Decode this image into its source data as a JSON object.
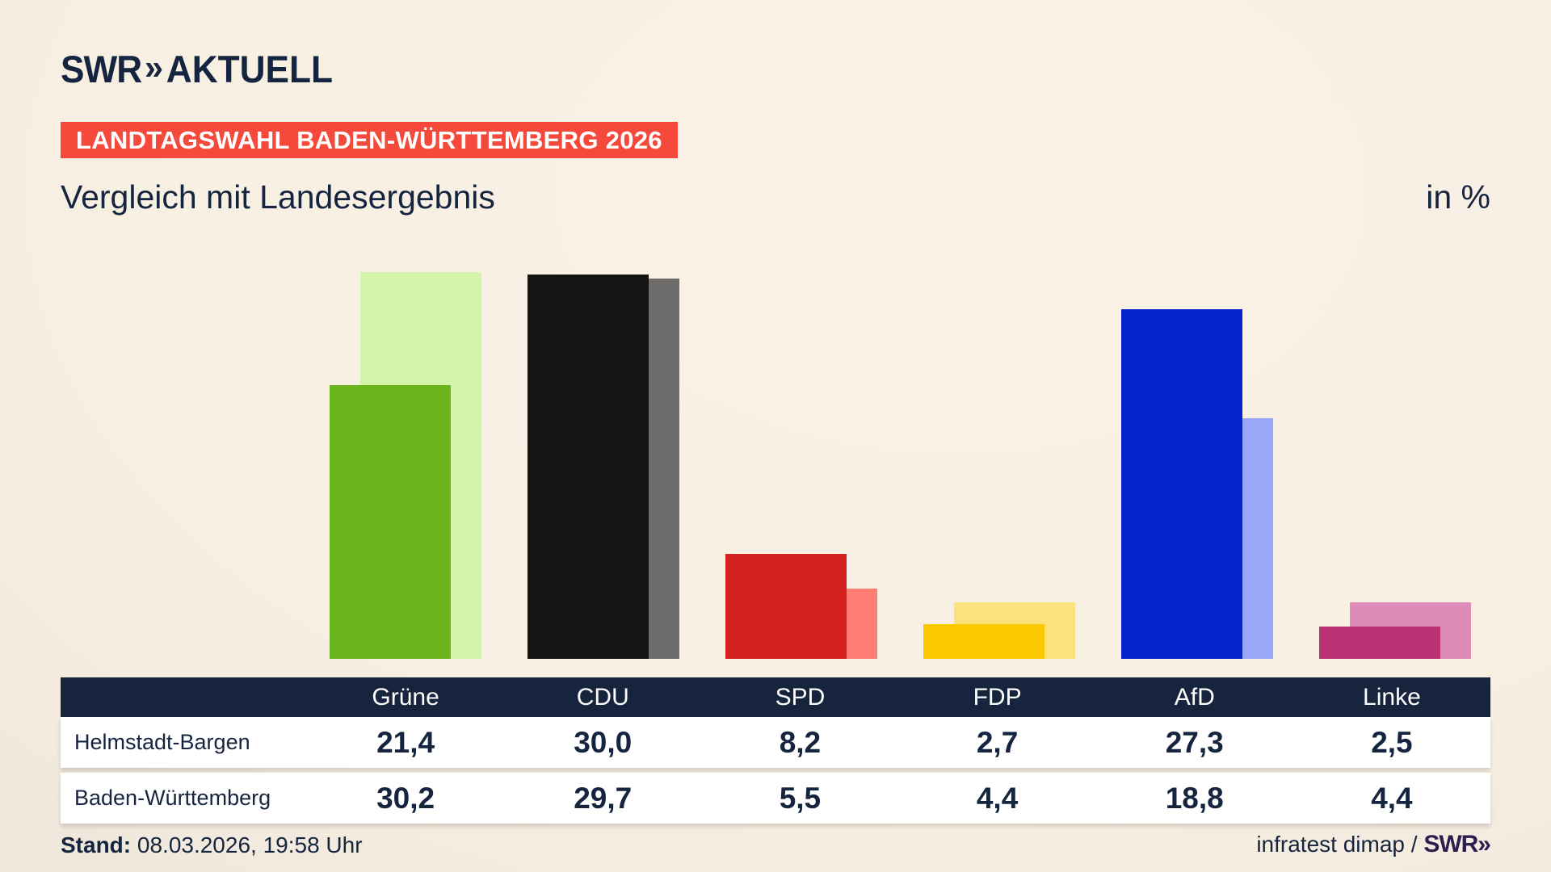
{
  "header": {
    "logo": {
      "swr": "SWR",
      "chevrons": "»",
      "word": "AKTUELL"
    },
    "badge": "LANDTAGSWAHL BADEN-WÜRTTEMBERG 2026",
    "title": "Vergleich mit Landesergebnis",
    "unit_label": "in %"
  },
  "chart_data": {
    "type": "bar",
    "title": "Vergleich mit Landesergebnis",
    "unit": "in %",
    "categories": [
      "Grüne",
      "CDU",
      "SPD",
      "FDP",
      "AfD",
      "Linke"
    ],
    "series": [
      {
        "name": "Helmstadt-Bargen",
        "values": [
          21.4,
          30.0,
          8.2,
          2.7,
          27.3,
          2.5
        ],
        "display": [
          "21,4",
          "30,0",
          "8,2",
          "2,7",
          "27,3",
          "2,5"
        ],
        "colors": [
          "#6cb41e",
          "#161413",
          "#d2211e",
          "#fcc800",
          "#0522cb",
          "#bb3274"
        ]
      },
      {
        "name": "Baden-Württemberg",
        "values": [
          30.2,
          29.7,
          5.5,
          4.4,
          18.8,
          4.4
        ],
        "display": [
          "30,2",
          "29,7",
          "5,5",
          "4,4",
          "18,8",
          "4,4"
        ],
        "colors": [
          "#d3f4a9",
          "#6e6c6a",
          "#ff7d73",
          "#fce27d",
          "#9aa8fa",
          "#de8bb8"
        ]
      }
    ],
    "ylim": [
      0,
      30.2
    ],
    "grid": false,
    "legend_position": "table-below",
    "value_labels_on_bars": false
  },
  "footer": {
    "stand_label": "Stand:",
    "stand_value": " 08.03.2026, 19:58 Uhr",
    "source": "infratest dimap / ",
    "source_logo": "SWR»"
  },
  "colors": {
    "background_light": "#faf2e6",
    "background_dark": "#d6d0c7",
    "navy": "#16243e",
    "badge_red": "#f4493b",
    "white": "#ffffff",
    "footer_logo": "#2c1e4f"
  }
}
